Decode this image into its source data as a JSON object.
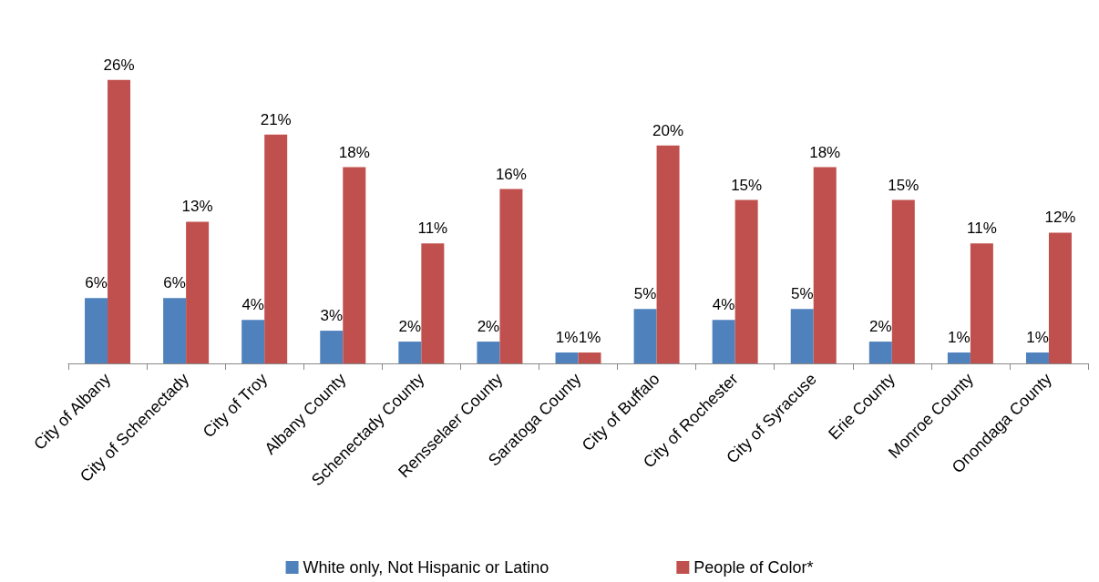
{
  "chart_data": {
    "type": "bar",
    "categories": [
      "City of Albany",
      "City of Schenectady",
      "City of Troy",
      "Albany County",
      "Schenectady County",
      "Rensselaer County",
      "Saratoga County",
      "City of Buffalo",
      "City of Rochester",
      "City of Syracuse",
      "Erie County",
      "Monroe County",
      "Onondaga County"
    ],
    "series": [
      {
        "name": "White only, Not Hispanic or Latino",
        "color": "#4f81bd",
        "values": [
          6,
          6,
          4,
          3,
          2,
          2,
          1,
          5,
          4,
          5,
          2,
          1,
          1
        ],
        "value_labels": [
          "6%",
          "6%",
          "4%",
          "3%",
          "2%",
          "2%",
          "1%",
          "5%",
          "4%",
          "5%",
          "2%",
          "1%",
          "1%"
        ]
      },
      {
        "name": "People of Color*",
        "color": "#c0504d",
        "values": [
          26,
          13,
          21,
          18,
          11,
          16,
          1,
          20,
          15,
          18,
          15,
          11,
          12
        ],
        "value_labels": [
          "26%",
          "13%",
          "21%",
          "18%",
          "11%",
          "16%",
          "1%",
          "20%",
          "15%",
          "18%",
          "15%",
          "11%",
          "12%"
        ]
      }
    ],
    "legend": "bottom"
  }
}
